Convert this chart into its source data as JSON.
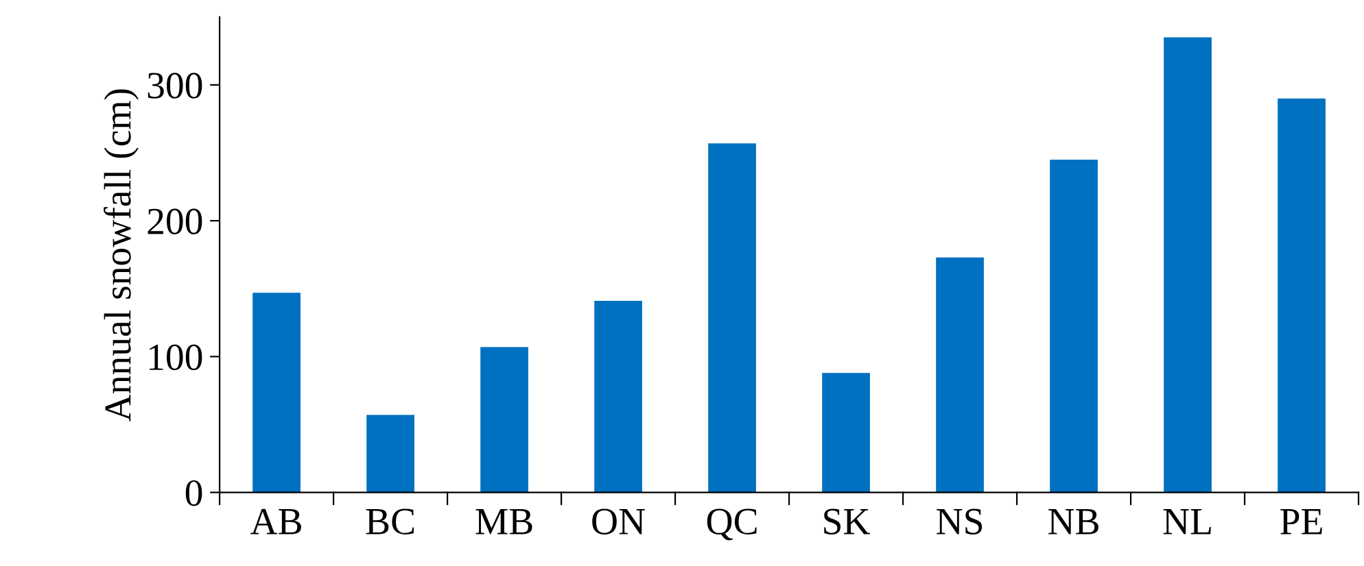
{
  "chart_data": {
    "type": "bar",
    "ylabel": "Annual snowfall (cm)",
    "categories": [
      "AB",
      "BC",
      "MB",
      "ON",
      "QC",
      "SK",
      "NS",
      "NB",
      "NL",
      "PE"
    ],
    "values": [
      147,
      57,
      107,
      141,
      257,
      88,
      173,
      245,
      335,
      290
    ],
    "color": "#0070c0",
    "ylim": [
      0,
      350
    ],
    "yticks": [
      0,
      100,
      200,
      300
    ],
    "grid": false,
    "legend": false
  }
}
